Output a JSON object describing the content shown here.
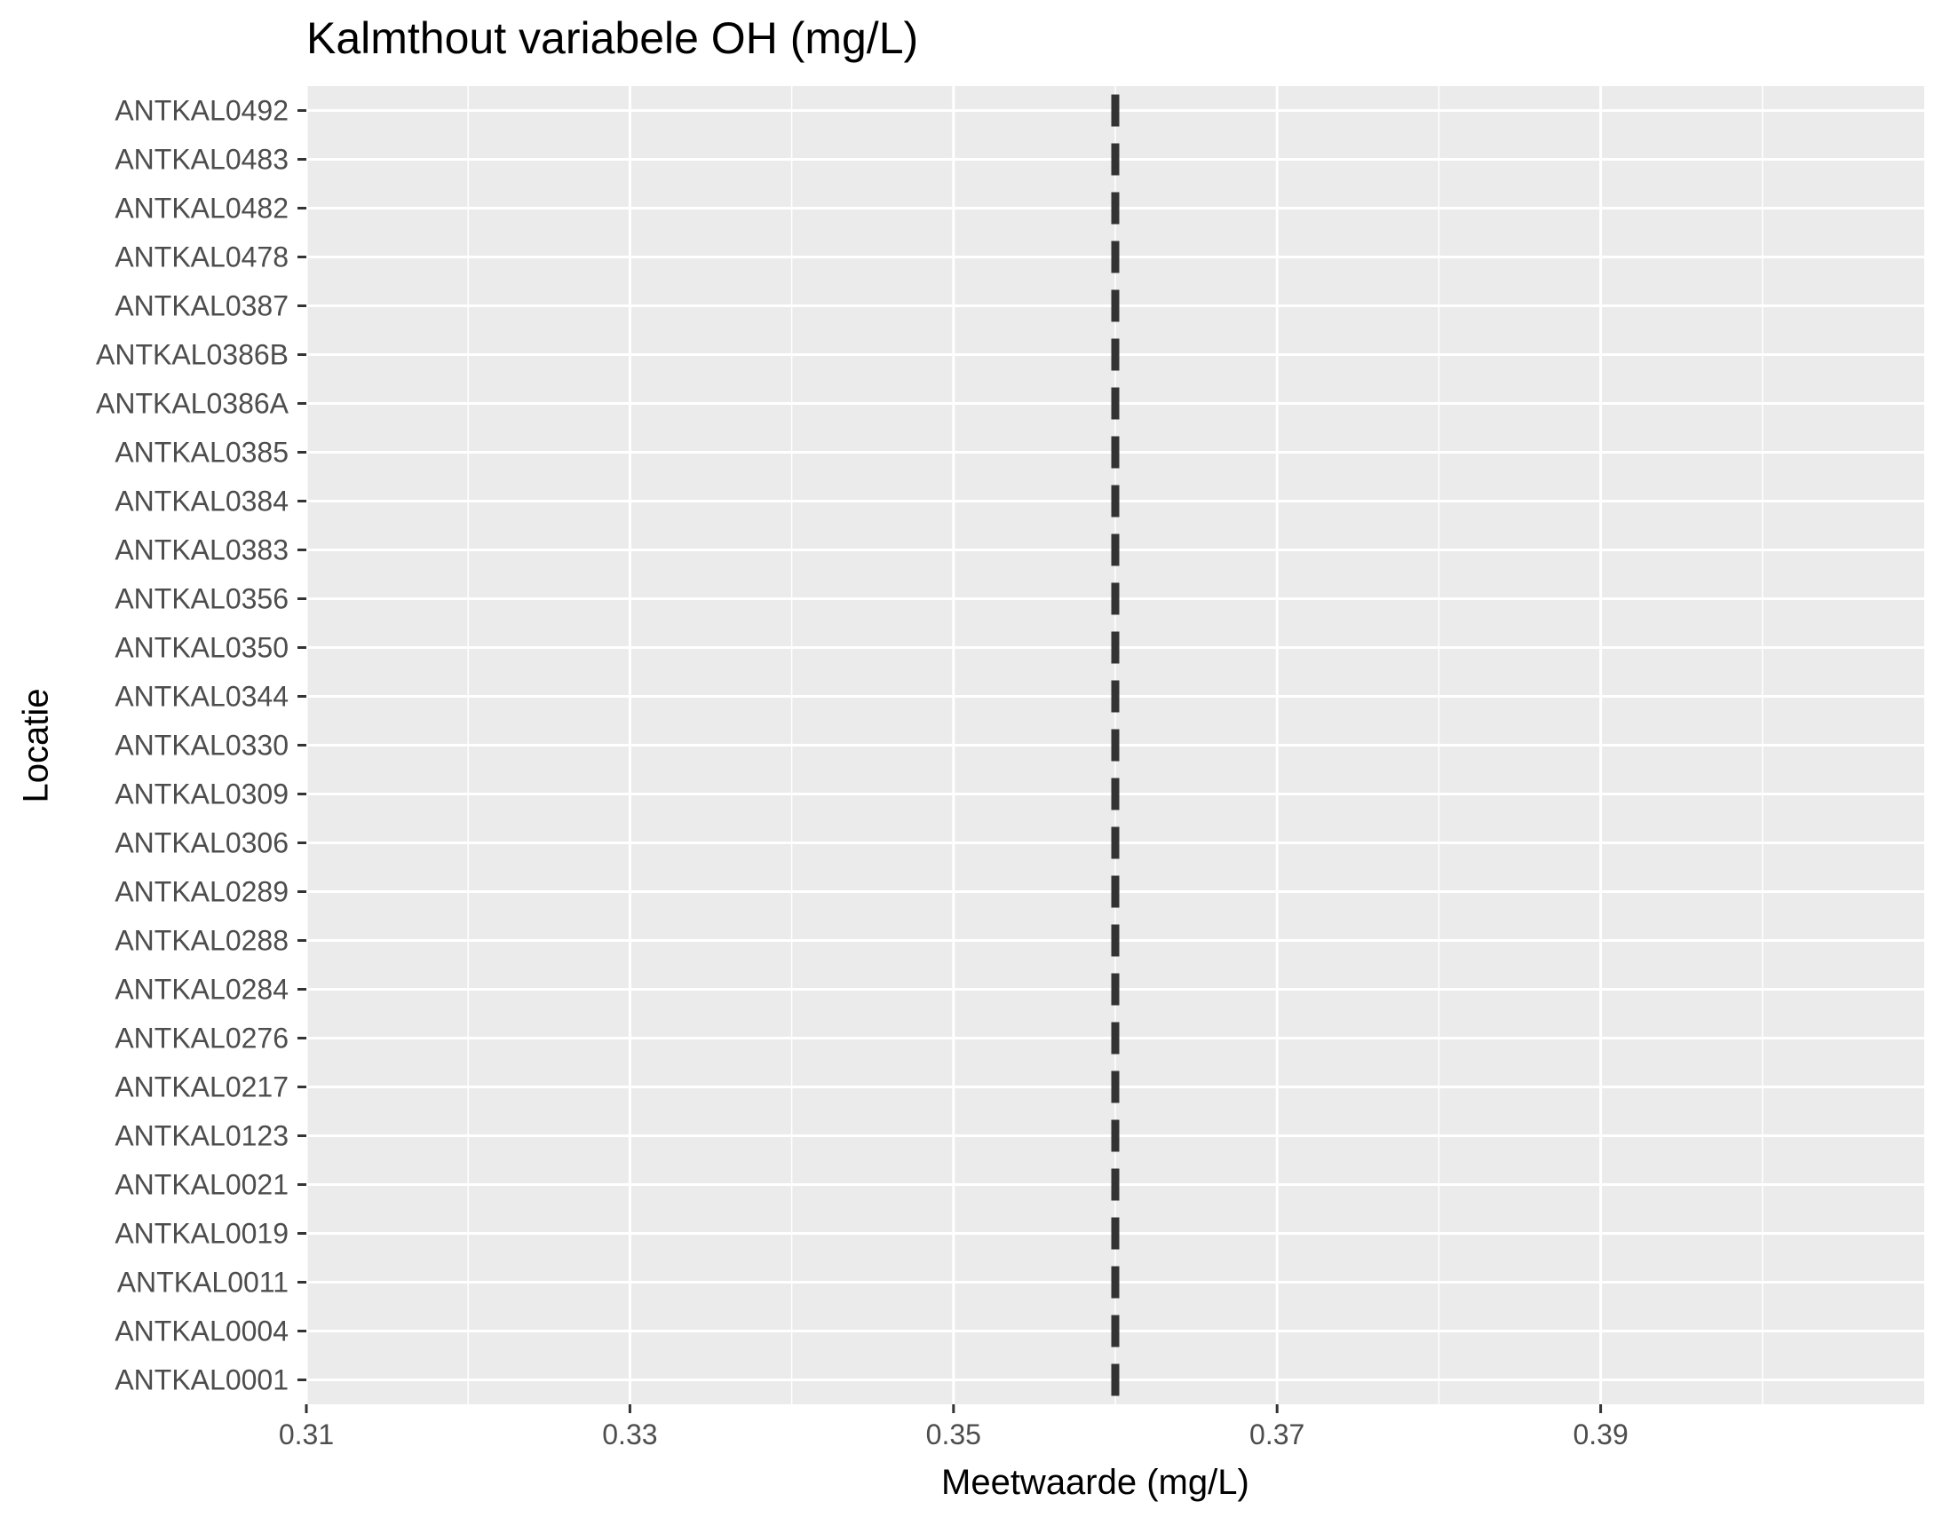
{
  "chart_data": {
    "type": "scatter",
    "title": "Kalmthout variabele OH (mg/L)",
    "xlabel": "Meetwaarde (mg/L)",
    "ylabel": "Locatie",
    "xlim": [
      0.31,
      0.41
    ],
    "x_ticks": [
      "0.31",
      "0.33",
      "0.35",
      "0.37",
      "0.39"
    ],
    "x_minor": [
      0.32,
      0.34,
      0.36,
      0.38,
      0.4
    ],
    "categories": [
      "ANTKAL0001",
      "ANTKAL0004",
      "ANTKAL0011",
      "ANTKAL0019",
      "ANTKAL0021",
      "ANTKAL0123",
      "ANTKAL0217",
      "ANTKAL0276",
      "ANTKAL0284",
      "ANTKAL0288",
      "ANTKAL0289",
      "ANTKAL0306",
      "ANTKAL0309",
      "ANTKAL0330",
      "ANTKAL0344",
      "ANTKAL0350",
      "ANTKAL0356",
      "ANTKAL0383",
      "ANTKAL0384",
      "ANTKAL0385",
      "ANTKAL0386A",
      "ANTKAL0386B",
      "ANTKAL0387",
      "ANTKAL0478",
      "ANTKAL0482",
      "ANTKAL0483",
      "ANTKAL0492"
    ],
    "values": [
      0.36,
      0.36,
      0.36,
      0.36,
      0.36,
      0.36,
      0.36,
      0.36,
      0.36,
      0.36,
      0.36,
      0.36,
      0.36,
      0.36,
      0.36,
      0.36,
      0.36,
      0.36,
      0.36,
      0.36,
      0.36,
      0.36,
      0.36,
      0.36,
      0.36,
      0.36,
      0.36
    ],
    "grid": true,
    "legend": "none",
    "colors": {
      "panel": "#EBEBEB",
      "grid": "#FFFFFF",
      "marker": "#333333",
      "tick_text": "#4D4D4D",
      "tick": "#333333"
    }
  }
}
